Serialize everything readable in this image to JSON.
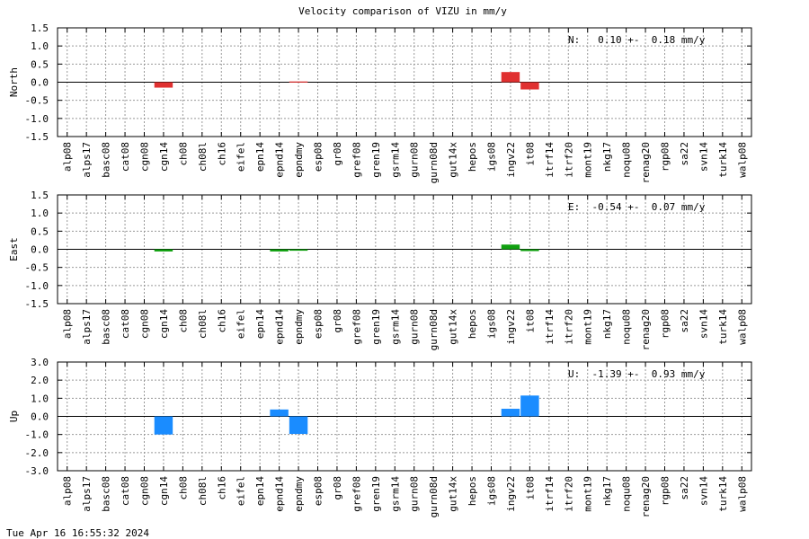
{
  "title": "Velocity comparison of VIZU in mm/y",
  "footer": "Tue Apr 16 16:55:32 2024",
  "chart_data": [
    {
      "type": "bar",
      "ylabel": "North",
      "ylim": [
        -1.5,
        1.5
      ],
      "yticks": [
        1.5,
        1.0,
        0.5,
        0.0,
        -0.5,
        -1.0,
        -1.5
      ],
      "ytick_labels": [
        "1.5",
        "1.0",
        "0.5",
        "0.0",
        "-0.5",
        "-1.0",
        "-1.5"
      ],
      "grid": true,
      "color": "#e03030",
      "annotation": "N:   0.10 +-  0.18 mm/y",
      "categories": [
        "alp08",
        "alps17",
        "basc08",
        "cat08",
        "cgn08",
        "cgn14",
        "ch08",
        "ch08l",
        "ch16",
        "eifel",
        "epn14",
        "epnd14",
        "epndmy",
        "esp08",
        "gr08",
        "gref08",
        "gren19",
        "gsrm14",
        "gurn08",
        "gurn08d",
        "gut14x",
        "hepos",
        "igs08",
        "ingv22",
        "it08",
        "itrf14",
        "itrf20",
        "mont19",
        "nkg17",
        "noqu08",
        "renag20",
        "rgp08",
        "sa22",
        "svn14",
        "turk14",
        "walp08"
      ],
      "values": [
        null,
        null,
        null,
        null,
        null,
        -0.15,
        null,
        null,
        null,
        null,
        null,
        null,
        0.02,
        null,
        null,
        null,
        null,
        null,
        null,
        null,
        null,
        null,
        null,
        0.28,
        -0.2,
        null,
        null,
        null,
        null,
        null,
        null,
        null,
        null,
        null,
        null,
        null
      ]
    },
    {
      "type": "bar",
      "ylabel": "East",
      "ylim": [
        -1.5,
        1.5
      ],
      "yticks": [
        1.5,
        1.0,
        0.5,
        0.0,
        -0.5,
        -1.0,
        -1.5
      ],
      "ytick_labels": [
        "1.5",
        "1.0",
        "0.5",
        "0.0",
        "-0.5",
        "-1.0",
        "-1.5"
      ],
      "grid": true,
      "color": "#10a010",
      "annotation": "E:  -0.54 +-  0.07 mm/y",
      "categories": [
        "alp08",
        "alps17",
        "basc08",
        "cat08",
        "cgn08",
        "cgn14",
        "ch08",
        "ch08l",
        "ch16",
        "eifel",
        "epn14",
        "epnd14",
        "epndmy",
        "esp08",
        "gr08",
        "gref08",
        "gren19",
        "gsrm14",
        "gurn08",
        "gurn08d",
        "gut14x",
        "hepos",
        "igs08",
        "ingv22",
        "it08",
        "itrf14",
        "itrf20",
        "mont19",
        "nkg17",
        "noqu08",
        "renag20",
        "rgp08",
        "sa22",
        "svn14",
        "turk14",
        "walp08"
      ],
      "values": [
        null,
        null,
        null,
        null,
        null,
        -0.06,
        null,
        null,
        null,
        null,
        null,
        -0.06,
        -0.04,
        null,
        null,
        null,
        null,
        null,
        null,
        null,
        null,
        null,
        null,
        0.13,
        -0.05,
        null,
        null,
        null,
        null,
        null,
        null,
        null,
        null,
        null,
        null,
        null
      ]
    },
    {
      "type": "bar",
      "ylabel": "Up",
      "ylim": [
        -3.0,
        3.0
      ],
      "yticks": [
        3.0,
        2.0,
        1.0,
        0.0,
        -1.0,
        -2.0,
        -3.0
      ],
      "ytick_labels": [
        "3.0",
        "2.0",
        "1.0",
        "0.0",
        "-1.0",
        "-2.0",
        "-3.0"
      ],
      "grid": true,
      "color": "#1a8cff",
      "annotation": "U:  -1.39 +-  0.93 mm/y",
      "categories": [
        "alp08",
        "alps17",
        "basc08",
        "cat08",
        "cgn08",
        "cgn14",
        "ch08",
        "ch08l",
        "ch16",
        "eifel",
        "epn14",
        "epnd14",
        "epndmy",
        "esp08",
        "gr08",
        "gref08",
        "gren19",
        "gsrm14",
        "gurn08",
        "gurn08d",
        "gut14x",
        "hepos",
        "igs08",
        "ingv22",
        "it08",
        "itrf14",
        "itrf20",
        "mont19",
        "nkg17",
        "noqu08",
        "renag20",
        "rgp08",
        "sa22",
        "svn14",
        "turk14",
        "walp08"
      ],
      "values": [
        null,
        null,
        null,
        null,
        null,
        -1.0,
        null,
        null,
        null,
        null,
        null,
        0.38,
        -0.97,
        null,
        null,
        null,
        null,
        null,
        null,
        null,
        null,
        null,
        null,
        0.42,
        1.15,
        null,
        null,
        null,
        null,
        null,
        null,
        null,
        null,
        null,
        null,
        null
      ]
    }
  ]
}
